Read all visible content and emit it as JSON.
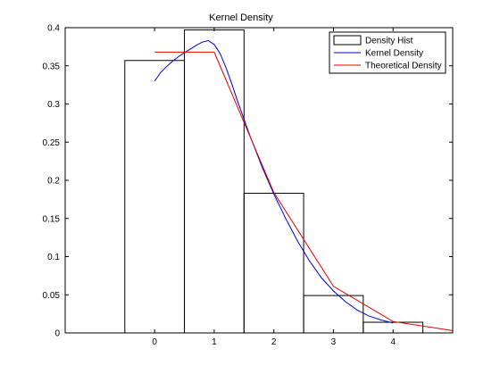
{
  "chart_data": {
    "type": "bar",
    "title": "Kernel Density",
    "xlabel": "",
    "ylabel": "",
    "xlim": [
      -1.5,
      5
    ],
    "ylim": [
      0,
      0.4
    ],
    "x_ticks": [
      0,
      1,
      2,
      3,
      4
    ],
    "x_tick_labels": [
      "0",
      "1",
      "2",
      "3",
      "4"
    ],
    "y_ticks": [
      0,
      0.05,
      0.1,
      0.15,
      0.2,
      0.25,
      0.3,
      0.35,
      0.4
    ],
    "y_tick_labels": [
      "0",
      "0.05",
      "0.1",
      "0.15",
      "0.2",
      "0.25",
      "0.3",
      "0.35",
      "0.4"
    ],
    "grid": false,
    "legend_position": "top-right",
    "histogram": {
      "name": "Density Hist",
      "bins": [
        {
          "x0": -0.5,
          "x1": 0.5,
          "value": 0.357
        },
        {
          "x0": 0.5,
          "x1": 1.5,
          "value": 0.397
        },
        {
          "x0": 1.5,
          "x1": 2.5,
          "value": 0.183
        },
        {
          "x0": 2.5,
          "x1": 3.5,
          "value": 0.049
        },
        {
          "x0": 3.5,
          "x1": 4.5,
          "value": 0.014
        }
      ],
      "color": "#000000"
    },
    "series": [
      {
        "name": "Kernel Density",
        "color": "#0000cc",
        "x": [
          0,
          0.1,
          0.2,
          0.3,
          0.4,
          0.5,
          0.6,
          0.7,
          0.8,
          0.9,
          1.0,
          1.1,
          1.2,
          1.3,
          1.4,
          1.5,
          1.6,
          1.7,
          1.8,
          1.9,
          2.0,
          2.2,
          2.4,
          2.6,
          2.8,
          3.0,
          3.2,
          3.4,
          3.6,
          3.8,
          4.0
        ],
        "y": [
          0.33,
          0.341,
          0.349,
          0.356,
          0.362,
          0.367,
          0.372,
          0.377,
          0.381,
          0.383,
          0.378,
          0.366,
          0.347,
          0.325,
          0.302,
          0.28,
          0.258,
          0.238,
          0.218,
          0.2,
          0.182,
          0.15,
          0.12,
          0.094,
          0.072,
          0.055,
          0.041,
          0.03,
          0.022,
          0.017,
          0.013
        ]
      },
      {
        "name": "Theoretical Density",
        "color": "#dd0000",
        "x": [
          0,
          1,
          2,
          3,
          4,
          5
        ],
        "y": [
          0.368,
          0.368,
          0.184,
          0.061,
          0.015,
          0.003
        ]
      }
    ]
  }
}
